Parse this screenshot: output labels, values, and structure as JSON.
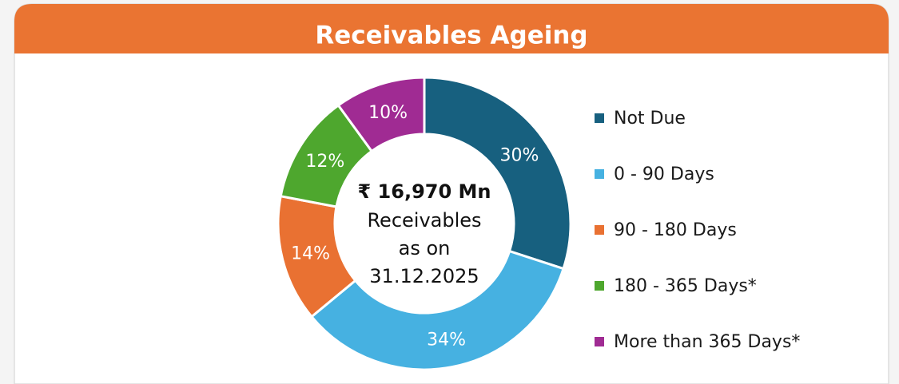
{
  "chart_data": {
    "type": "donut",
    "title": "Receivables Ageing",
    "center_value": "₹ 16,970 Mn",
    "center_caption": [
      "Receivables",
      "as on",
      "31.12.2025"
    ],
    "categories": [
      "Not Due",
      "0 - 90 Days",
      "90 - 180 Days",
      "180 - 365 Days*",
      "More than 365 Days*"
    ],
    "values": [
      30,
      34,
      14,
      12,
      10
    ],
    "value_labels": [
      "30%",
      "34%",
      "14%",
      "12%",
      "10%"
    ],
    "colors": [
      "#17607f",
      "#46b1e1",
      "#e97132",
      "#4ea72e",
      "#a02b93"
    ],
    "legend": "right"
  }
}
